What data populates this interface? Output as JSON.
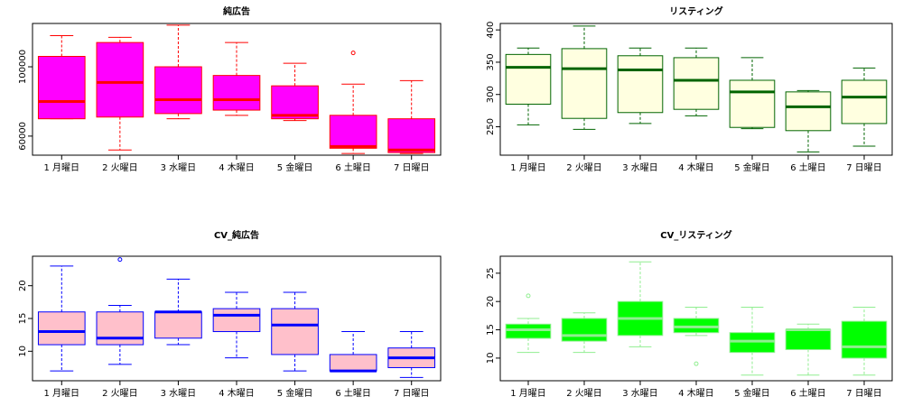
{
  "chart_data": [
    {
      "type": "boxplot",
      "title": "純広告",
      "categories": [
        "1 月曜日",
        "2 火曜日",
        "3 水曜日",
        "4 木曜日",
        "5 金曜日",
        "6 土曜日",
        "7 日曜日"
      ],
      "ylim": [
        49000,
        125000
      ],
      "yticks": [
        60000,
        100000
      ],
      "ytick_labels": [
        "60000",
        "100000"
      ],
      "box_fill": "#ff00ff",
      "border_color": "#ff0000",
      "boxes": [
        {
          "whisker_low": 70000,
          "q1": 70000,
          "median": 80000,
          "q3": 106000,
          "whisker_high": 118000,
          "outliers": []
        },
        {
          "whisker_low": 52000,
          "q1": 71000,
          "median": 91000,
          "q3": 114000,
          "whisker_high": 117000,
          "outliers": []
        },
        {
          "whisker_low": 70000,
          "q1": 73000,
          "median": 81000,
          "q3": 100000,
          "whisker_high": 124000,
          "outliers": []
        },
        {
          "whisker_low": 72000,
          "q1": 75000,
          "median": 81000,
          "q3": 95000,
          "whisker_high": 114000,
          "outliers": []
        },
        {
          "whisker_low": 69000,
          "q1": 70000,
          "median": 72000,
          "q3": 89000,
          "whisker_high": 102000,
          "outliers": []
        },
        {
          "whisker_low": 50000,
          "q1": 53000,
          "median": 54000,
          "q3": 72000,
          "whisker_high": 90000,
          "outliers": [
            108000
          ]
        },
        {
          "whisker_low": 50000,
          "q1": 50500,
          "median": 52000,
          "q3": 70000,
          "whisker_high": 92000,
          "outliers": []
        }
      ]
    },
    {
      "type": "boxplot",
      "title": "リスティング",
      "categories": [
        "1 月曜日",
        "2 火曜日",
        "3 水曜日",
        "4 木曜日",
        "5 金曜日",
        "6 土曜日",
        "7 日曜日"
      ],
      "ylim": [
        206,
        410
      ],
      "yticks": [
        250,
        300,
        350,
        400
      ],
      "ytick_labels": [
        "250",
        "300",
        "350",
        "400"
      ],
      "box_fill": "#ffffe0",
      "border_color": "#006400",
      "boxes": [
        {
          "whisker_low": 253,
          "q1": 285,
          "median": 342,
          "q3": 362,
          "whisker_high": 372,
          "outliers": []
        },
        {
          "whisker_low": 246,
          "q1": 263,
          "median": 340,
          "q3": 371,
          "whisker_high": 406,
          "outliers": []
        },
        {
          "whisker_low": 255,
          "q1": 272,
          "median": 338,
          "q3": 360,
          "whisker_high": 372,
          "outliers": []
        },
        {
          "whisker_low": 267,
          "q1": 277,
          "median": 322,
          "q3": 357,
          "whisker_high": 372,
          "outliers": []
        },
        {
          "whisker_low": 247,
          "q1": 249,
          "median": 304,
          "q3": 322,
          "whisker_high": 357,
          "outliers": []
        },
        {
          "whisker_low": 211,
          "q1": 244,
          "median": 281,
          "q3": 304,
          "whisker_high": 306,
          "outliers": []
        },
        {
          "whisker_low": 220,
          "q1": 255,
          "median": 296,
          "q3": 322,
          "whisker_high": 341,
          "outliers": []
        }
      ]
    },
    {
      "type": "boxplot",
      "title": "CV_純広告",
      "categories": [
        "1 月曜日",
        "2 火曜日",
        "3 水曜日",
        "4 木曜日",
        "5 金曜日",
        "6 土曜日",
        "7 日曜日"
      ],
      "ylim": [
        5.5,
        24.5
      ],
      "yticks": [
        10,
        15,
        20
      ],
      "ytick_labels": [
        "10",
        "15",
        "20"
      ],
      "box_fill": "#ffc0cb",
      "border_color": "#0000ff",
      "boxes": [
        {
          "whisker_low": 7,
          "q1": 11,
          "median": 13,
          "q3": 16,
          "whisker_high": 23,
          "outliers": []
        },
        {
          "whisker_low": 8,
          "q1": 11,
          "median": 12,
          "q3": 16,
          "whisker_high": 17,
          "outliers": [
            24
          ]
        },
        {
          "whisker_low": 11,
          "q1": 12,
          "median": 16,
          "q3": 16,
          "whisker_high": 21,
          "outliers": []
        },
        {
          "whisker_low": 9,
          "q1": 13,
          "median": 15.5,
          "q3": 16.5,
          "whisker_high": 19,
          "outliers": []
        },
        {
          "whisker_low": 7,
          "q1": 9.5,
          "median": 14,
          "q3": 16.5,
          "whisker_high": 19,
          "outliers": []
        },
        {
          "whisker_low": 7,
          "q1": 7,
          "median": 7,
          "q3": 9.5,
          "whisker_high": 13,
          "outliers": []
        },
        {
          "whisker_low": 6,
          "q1": 7.5,
          "median": 9,
          "q3": 10.5,
          "whisker_high": 13,
          "outliers": []
        }
      ]
    },
    {
      "type": "boxplot",
      "title": "CV_リスティング",
      "categories": [
        "1 月曜日",
        "2 火曜日",
        "3 水曜日",
        "4 木曜日",
        "5 金曜日",
        "6 土曜日",
        "7 日曜日"
      ],
      "ylim": [
        6,
        28
      ],
      "yticks": [
        10,
        15,
        20,
        25
      ],
      "ytick_labels": [
        "10",
        "15",
        "20",
        "25"
      ],
      "box_fill": "#00ff00",
      "border_color": "#90ee90",
      "boxes": [
        {
          "whisker_low": 11,
          "q1": 13.5,
          "median": 15,
          "q3": 16,
          "whisker_high": 17,
          "outliers": [
            21
          ]
        },
        {
          "whisker_low": 11,
          "q1": 13,
          "median": 14,
          "q3": 17,
          "whisker_high": 18,
          "outliers": []
        },
        {
          "whisker_low": 12,
          "q1": 14,
          "median": 17,
          "q3": 20,
          "whisker_high": 27,
          "outliers": []
        },
        {
          "whisker_low": 14,
          "q1": 14.5,
          "median": 15.5,
          "q3": 17,
          "whisker_high": 19,
          "outliers": [
            9
          ]
        },
        {
          "whisker_low": 7,
          "q1": 11,
          "median": 13,
          "q3": 14.5,
          "whisker_high": 19,
          "outliers": []
        },
        {
          "whisker_low": 7,
          "q1": 11.5,
          "median": 15,
          "q3": 15,
          "whisker_high": 16,
          "outliers": []
        },
        {
          "whisker_low": 7,
          "q1": 10,
          "median": 12,
          "q3": 16.5,
          "whisker_high": 19,
          "outliers": []
        }
      ]
    }
  ]
}
